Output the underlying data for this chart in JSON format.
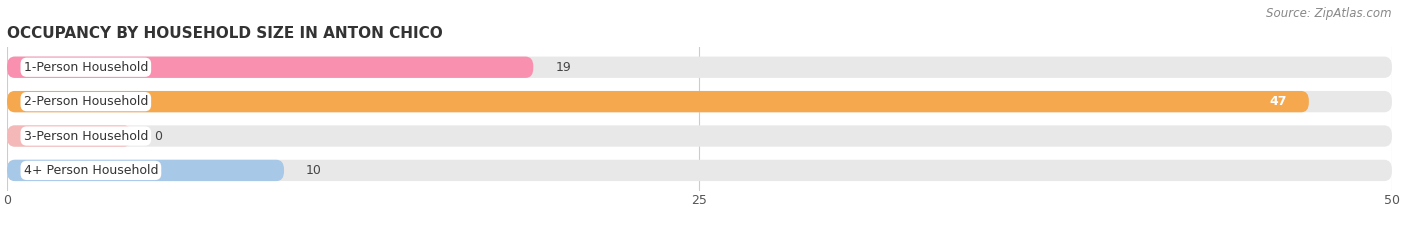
{
  "title": "OCCUPANCY BY HOUSEHOLD SIZE IN ANTON CHICO",
  "source": "Source: ZipAtlas.com",
  "categories": [
    "1-Person Household",
    "2-Person Household",
    "3-Person Household",
    "4+ Person Household"
  ],
  "values": [
    19,
    47,
    0,
    10
  ],
  "bar_colors": [
    "#f990b0",
    "#f5a84e",
    "#f5b8b8",
    "#a8c8e8"
  ],
  "xlim": [
    0,
    50
  ],
  "xticks": [
    0,
    25,
    50
  ],
  "background_color": "#ffffff",
  "bar_bg_color": "#e8e8e8",
  "title_fontsize": 11,
  "label_fontsize": 9,
  "value_fontsize": 9,
  "source_fontsize": 8.5
}
